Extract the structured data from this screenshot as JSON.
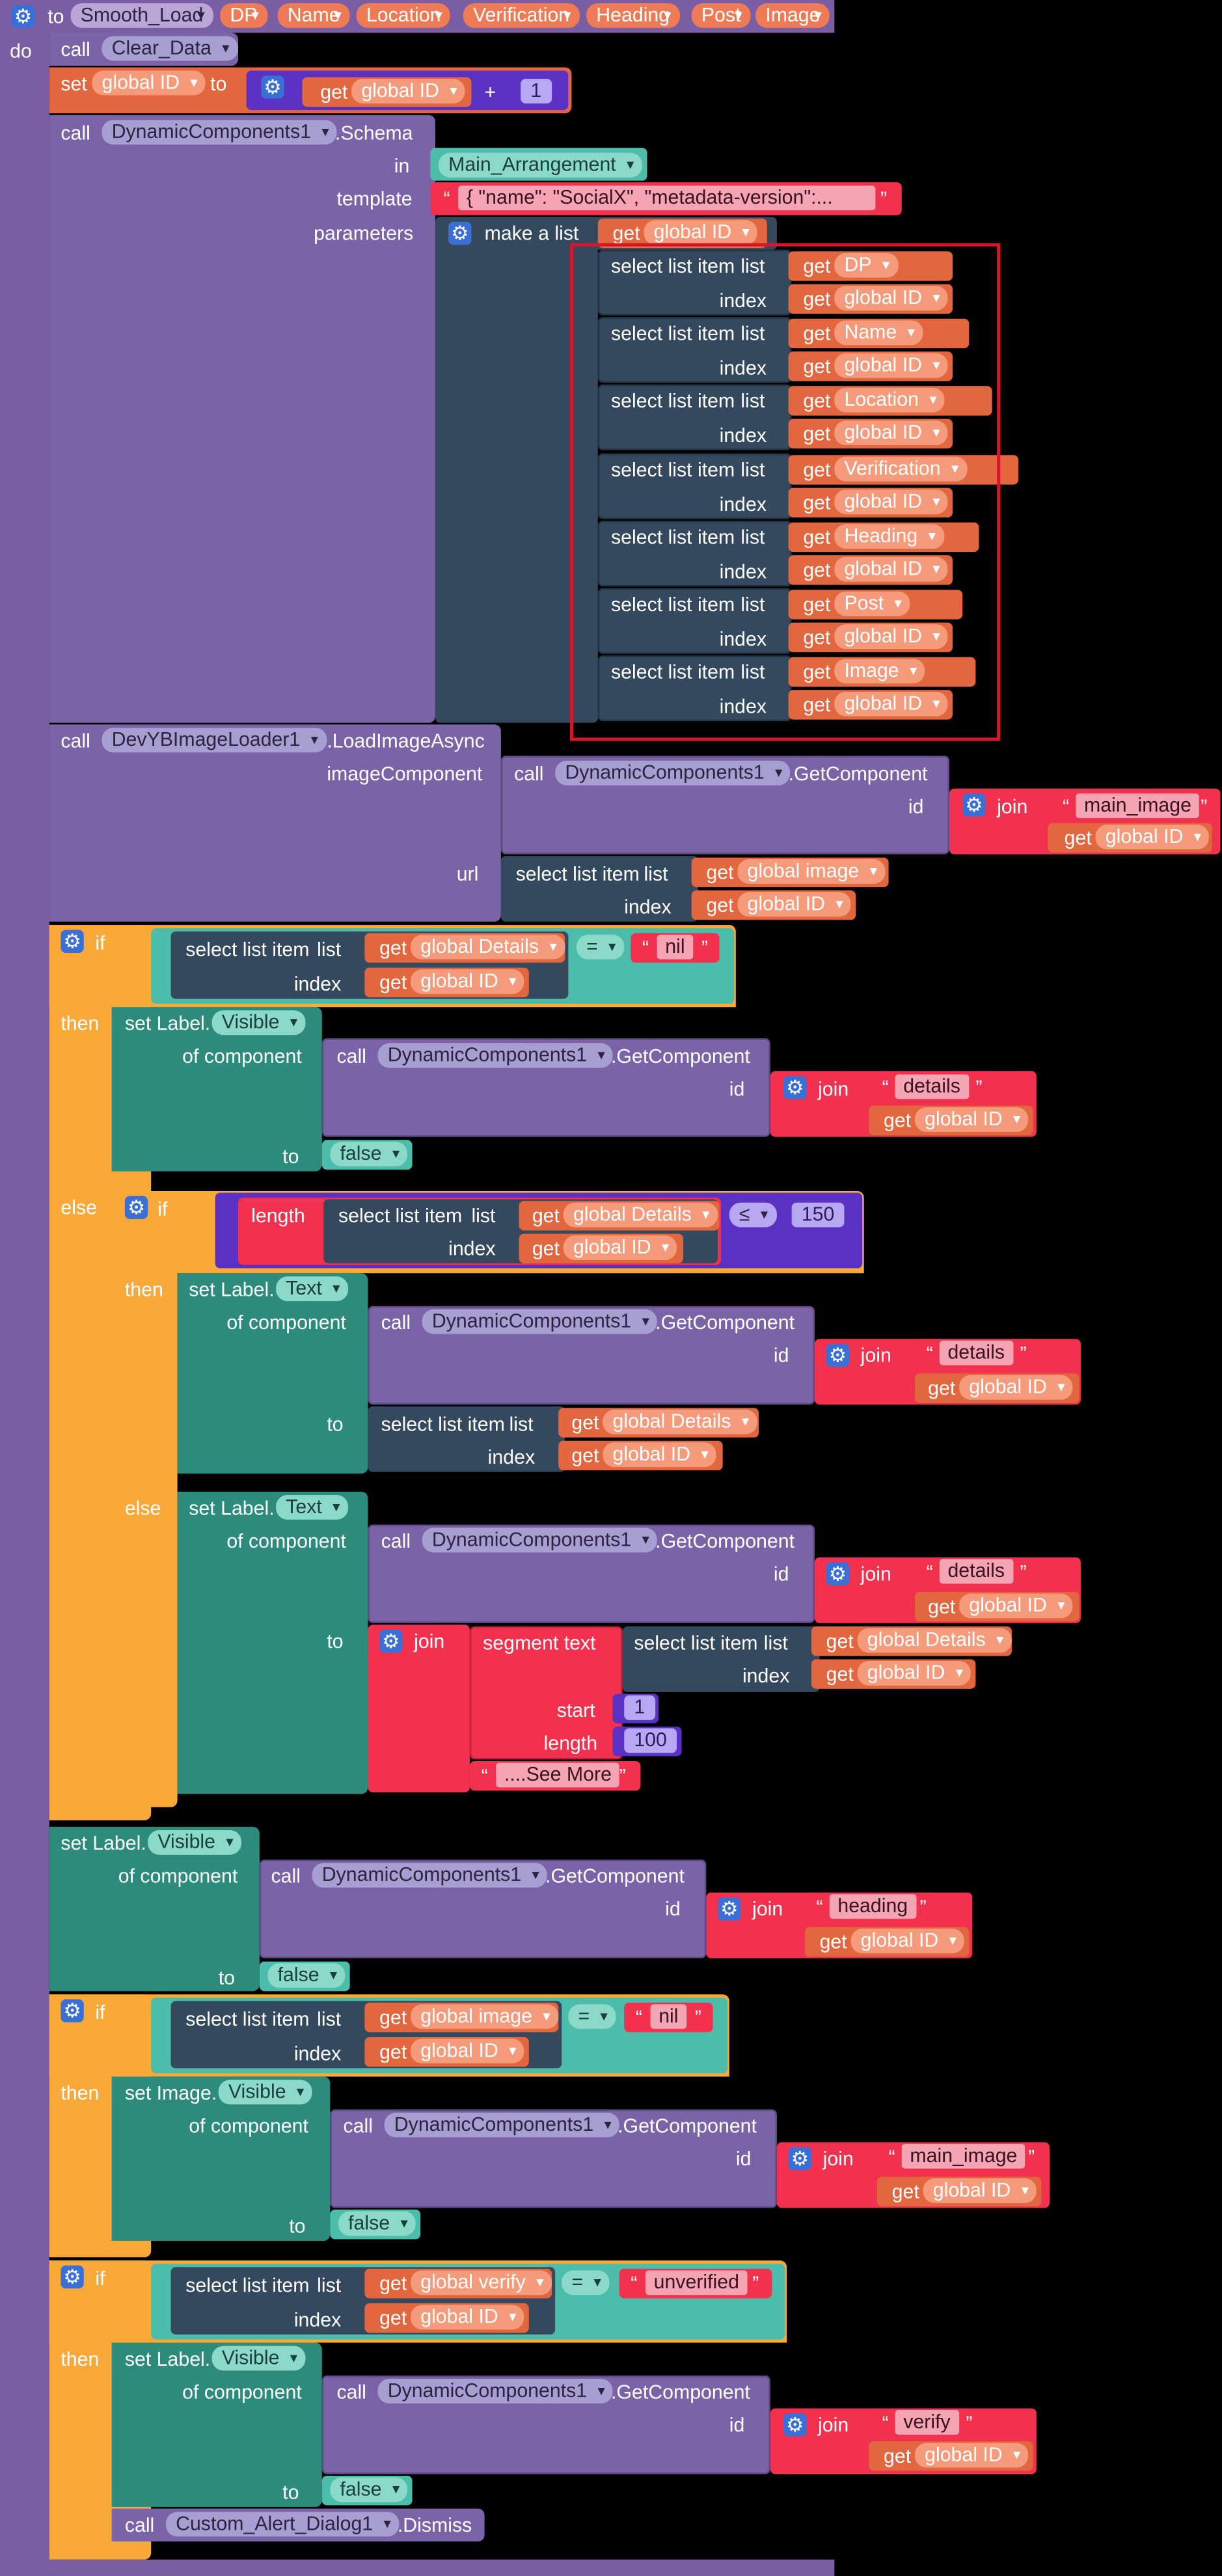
{
  "procedure": {
    "to": "to",
    "name": "Smooth_Load",
    "params": [
      "DP",
      "Name",
      "Location",
      "Verification",
      "Heading",
      "Post",
      "Image"
    ],
    "do": "do"
  },
  "kw": {
    "call": "call",
    "set": "set",
    "to": "to",
    "get": "get",
    "plus": "+",
    "in": "in",
    "template": "template",
    "parameters": "parameters",
    "make_list": "make a list",
    "select_list_item": "select list item",
    "list": "list",
    "index": "index",
    "join": "join",
    "id": "id",
    "url": "url",
    "imageComponent": "imageComponent",
    "if": "if",
    "then": "then",
    "else": "else",
    "of_component": "of component",
    "length": "length",
    "segment_text": "segment text",
    "text": "text",
    "start": "start",
    "eq": "=",
    "le": "≤",
    "set_label": "set Label.",
    "set_image": "set Image.",
    "get_component": ".GetComponent",
    "schema": ".Schema",
    "load_image_async": ".LoadImageAsync",
    "dismiss": ".Dismiss",
    "quote_open": "“",
    "quote_close": "”"
  },
  "methods": {
    "clear_data": "Clear_Data",
    "dynamic": "DynamicComponents1",
    "loader": "DevYBImageLoader1",
    "dialog": "Custom_Alert_Dialog1"
  },
  "vars": {
    "global_id": "global ID",
    "global_image": "global image",
    "global_details": "global Details",
    "global_verify": "global verify"
  },
  "props": {
    "visible": "Visible",
    "text": "Text"
  },
  "values": {
    "one": "1",
    "main_arrangement": "Main_Arrangement",
    "template_json": "{     \"name\": \"SocialX\",     \"metadata-version\":...",
    "main_image": "main_image",
    "nil": "nil",
    "details": "details",
    "limit": "150",
    "start": "1",
    "seg_length": "100",
    "see_more": "....See More",
    "false": "false",
    "heading": "heading",
    "unverified": "unverified",
    "verify": "verify"
  },
  "colors": {
    "procedure": "#795ea3",
    "method": "#7a63a6",
    "variable": "#e2673e",
    "text": "#f2314f",
    "control": "#f8a937",
    "lists": "#34495e",
    "property": "#2c8b7b",
    "math": "#5b31c4",
    "compare": "#4dbdab",
    "highlight": "#d6162b"
  }
}
